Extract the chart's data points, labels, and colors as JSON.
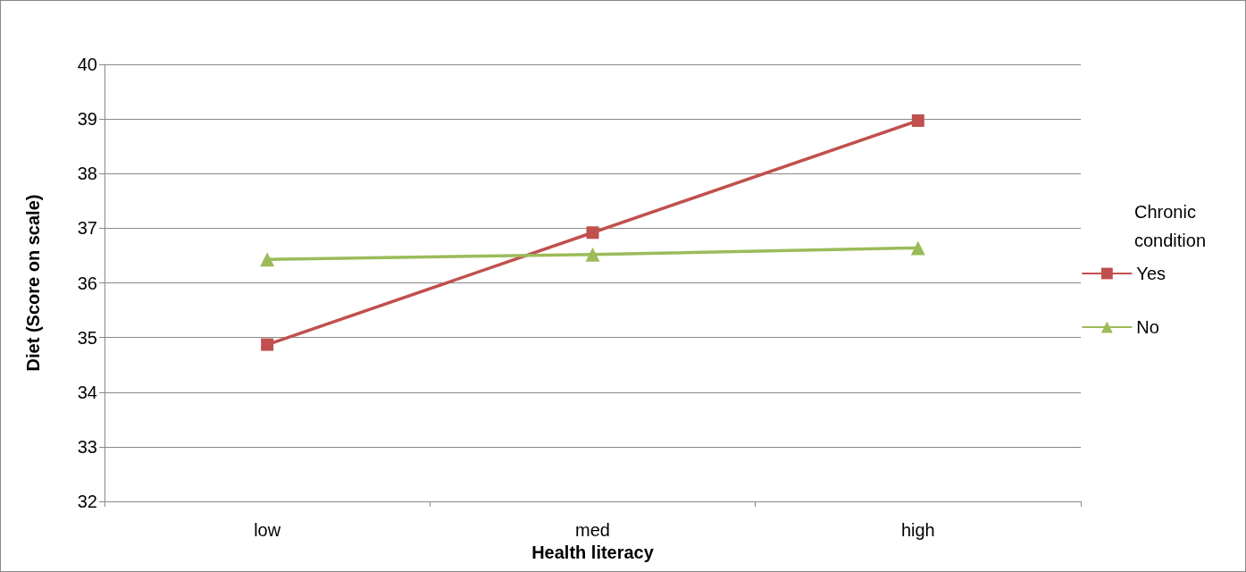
{
  "chart_data": {
    "type": "line",
    "xlabel": "Health literacy",
    "ylabel": "Diet (Score on scale)",
    "legend_title": "Chronic condition",
    "categories": [
      "low",
      "med",
      "high"
    ],
    "series": [
      {
        "name": "Yes",
        "color": "#c0504d",
        "marker": "square",
        "values": [
          34.87,
          36.92,
          38.97
        ]
      },
      {
        "name": "No",
        "color": "#9bbb59",
        "marker": "triangle",
        "values": [
          36.43,
          36.52,
          36.64
        ]
      }
    ],
    "ylim": [
      32,
      40
    ],
    "yticks": [
      32,
      33,
      34,
      35,
      36,
      37,
      38,
      39,
      40
    ],
    "grid": "y",
    "legend": "right",
    "line_style": "solid"
  }
}
